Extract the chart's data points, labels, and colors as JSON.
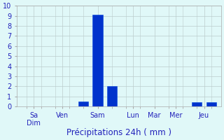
{
  "x_positions": [
    0,
    1,
    2,
    3,
    4,
    5,
    6,
    7,
    8,
    9,
    10,
    11,
    12,
    13
  ],
  "values": [
    0,
    0,
    0,
    0,
    0.5,
    9.1,
    2.0,
    0,
    0,
    0,
    0,
    0,
    0.4,
    0.4
  ],
  "tick_labels": [
    "Sa\nDim",
    "Ven",
    "Sam",
    "Lun",
    "Mar",
    "Mer",
    "Jeu"
  ],
  "tick_positions": [
    0.5,
    2.5,
    5.0,
    7.5,
    9.0,
    10.5,
    12.5
  ],
  "bar_color": "#0033CC",
  "bar_edge_color": "#0044DD",
  "background_color": "#E0F8F8",
  "grid_color": "#BBCCCC",
  "ylim": [
    0,
    10
  ],
  "yticks": [
    0,
    1,
    2,
    3,
    4,
    5,
    6,
    7,
    8,
    9,
    10
  ],
  "xlabel": "Précipitations 24h ( mm )",
  "xlabel_fontsize": 8.5,
  "tick_fontsize": 7,
  "ytick_fontsize": 7
}
